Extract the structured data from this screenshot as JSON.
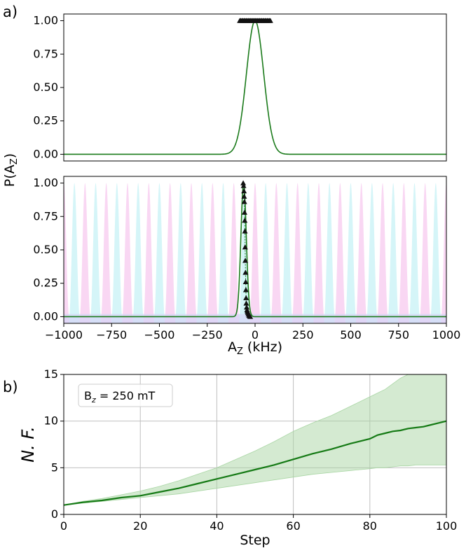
{
  "panels": {
    "a": "a)",
    "b": "b)"
  },
  "chart_data": [
    {
      "id": "top",
      "type": "line",
      "xlim": [
        -1000,
        1000
      ],
      "ylim": [
        -0.05,
        1.05
      ],
      "yticks": [
        0.0,
        0.25,
        0.5,
        0.75,
        1.0
      ],
      "ytick_labels": [
        "0.00",
        "0.25",
        "0.50",
        "0.75",
        "1.00"
      ],
      "ylabel": "P(A",
      "ylabel_sub": "Z",
      "ylabel_close": ")",
      "curve": {
        "center": 0,
        "sigma": 45,
        "color": "#1a7a1a"
      },
      "markers": {
        "y": 1.0,
        "x_from": -80,
        "x_to": 80,
        "count": 30,
        "color": "#111111"
      }
    },
    {
      "id": "middle",
      "type": "line",
      "xlim": [
        -1000,
        1000
      ],
      "ylim": [
        -0.05,
        1.05
      ],
      "xticks": [
        -1000,
        -750,
        -500,
        -250,
        0,
        250,
        500,
        750,
        1000
      ],
      "xtick_labels": [
        "−1000",
        "−750",
        "−500",
        "−250",
        "0",
        "250",
        "500",
        "750",
        "1000"
      ],
      "yticks": [
        0.0,
        0.25,
        0.5,
        0.75,
        1.0
      ],
      "ytick_labels": [
        "0.00",
        "0.25",
        "0.50",
        "0.75",
        "1.00"
      ],
      "xlabel": "A",
      "xlabel_sub": "Z",
      "xlabel_rest": " (kHz)",
      "background_fringes": {
        "count": 37,
        "colors": [
          "#f7c9ef",
          "#c7f2f5",
          "#d6d6f7"
        ]
      },
      "curve": {
        "center": -60,
        "sigma": 14,
        "color": "#1a7a1a"
      },
      "markers": {
        "x": [
          -62,
          -60,
          -58,
          -57,
          -56,
          -55,
          -54,
          -53,
          -52,
          -51,
          -50,
          -49,
          -48,
          -47,
          -46,
          -44,
          -42,
          -40,
          -38,
          -35,
          -32,
          -29,
          -25
        ],
        "y": [
          1.0,
          0.98,
          0.94,
          0.9,
          0.86,
          0.78,
          0.72,
          0.64,
          0.52,
          0.42,
          0.33,
          0.26,
          0.2,
          0.14,
          0.1,
          0.07,
          0.05,
          0.04,
          0.03,
          0.02,
          0.01,
          0.005,
          0.0
        ],
        "color": "#111111"
      }
    },
    {
      "id": "bottom",
      "type": "area",
      "xlim": [
        0,
        100
      ],
      "ylim": [
        0,
        15
      ],
      "xticks": [
        0,
        20,
        40,
        60,
        80,
        100
      ],
      "xtick_labels": [
        "0",
        "20",
        "40",
        "60",
        "80",
        "100"
      ],
      "yticks": [
        0,
        5,
        10,
        15
      ],
      "ytick_labels": [
        "0",
        "5",
        "10",
        "15"
      ],
      "xlabel": "Step",
      "ylabel": "N. F.",
      "grid": true,
      "legend": {
        "text": "B",
        "sub": "z",
        "rest": " = 250 mT",
        "placement": "top-left"
      },
      "series": [
        {
          "x": [
            0,
            5,
            10,
            15,
            20,
            25,
            30,
            35,
            40,
            45,
            50,
            55,
            60,
            65,
            70,
            75,
            80,
            82,
            84,
            86,
            88,
            90,
            92,
            94,
            96,
            98,
            100
          ],
          "mean": [
            1.0,
            1.3,
            1.5,
            1.8,
            2.0,
            2.4,
            2.8,
            3.3,
            3.8,
            4.3,
            4.8,
            5.3,
            5.9,
            6.5,
            7.0,
            7.6,
            8.1,
            8.5,
            8.7,
            8.9,
            9.0,
            9.2,
            9.3,
            9.4,
            9.6,
            9.8,
            10.0
          ],
          "upper": [
            1.0,
            1.4,
            1.7,
            2.1,
            2.5,
            3.0,
            3.6,
            4.3,
            5.0,
            5.9,
            6.8,
            7.8,
            8.9,
            9.8,
            10.6,
            11.6,
            12.6,
            13.0,
            13.4,
            14.0,
            14.6,
            15.0,
            15.0,
            15.0,
            15.0,
            15.0,
            15.0
          ],
          "lower": [
            1.0,
            1.2,
            1.4,
            1.6,
            1.8,
            2.0,
            2.2,
            2.5,
            2.8,
            3.1,
            3.4,
            3.7,
            4.0,
            4.3,
            4.5,
            4.7,
            4.9,
            5.0,
            5.0,
            5.1,
            5.2,
            5.2,
            5.3,
            5.3,
            5.3,
            5.3,
            5.3
          ],
          "line_color": "#157a15",
          "band_color": "#a9d6a4"
        }
      ]
    }
  ]
}
